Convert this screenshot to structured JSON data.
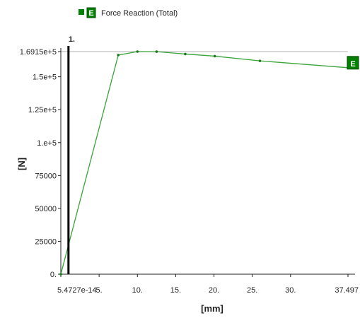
{
  "chart_data": {
    "type": "line",
    "series": [
      {
        "name": "Force Reaction (Total)",
        "legend_badge": "E",
        "x": [
          0,
          7.5,
          10,
          12.5,
          16.25,
          20.1,
          26,
          37.497
        ],
        "y": [
          0,
          166500,
          169150,
          169100,
          167300,
          165700,
          162100,
          156900
        ]
      }
    ],
    "xlabel": "[mm]",
    "ylabel": "[N]",
    "xlim": [
      0,
      37.497
    ],
    "ylim": [
      0,
      169150
    ],
    "x_ticks": [
      {
        "value": 0,
        "label": "5.4727e-14"
      },
      {
        "value": 5,
        "label": "5."
      },
      {
        "value": 10,
        "label": "10."
      },
      {
        "value": 15,
        "label": "15."
      },
      {
        "value": 20,
        "label": "20."
      },
      {
        "value": 25,
        "label": "25."
      },
      {
        "value": 30,
        "label": "30."
      },
      {
        "value": 37.497,
        "label": "37.497"
      }
    ],
    "y_ticks": [
      {
        "value": 0,
        "label": "0."
      },
      {
        "value": 25000,
        "label": "25000"
      },
      {
        "value": 50000,
        "label": "50000"
      },
      {
        "value": 75000,
        "label": "75000"
      },
      {
        "value": 100000,
        "label": "1.e+5"
      },
      {
        "value": 125000,
        "label": "1.25e+5"
      },
      {
        "value": 150000,
        "label": "1.5e+5"
      },
      {
        "value": 169150,
        "label": "1.6915e+5"
      }
    ],
    "cursor": {
      "x": 1,
      "label": "1."
    },
    "end_badge": "E",
    "max_reference_line": 169150,
    "grid": false,
    "legend_position": "top-left",
    "colors": {
      "line": "#3aa33a",
      "marker": "#1f7a1f",
      "badge": "#008000",
      "cursor": "#000000",
      "reference": "#b0b0b0"
    }
  }
}
